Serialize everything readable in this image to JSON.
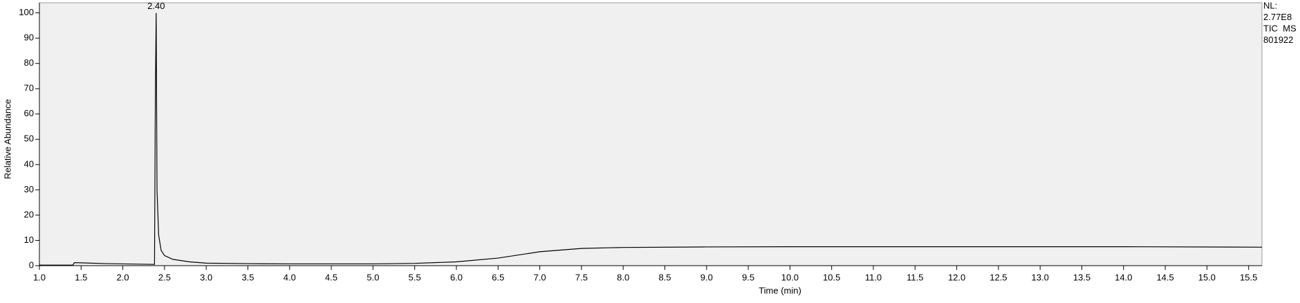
{
  "chart_data": {
    "type": "line",
    "xlabel": "Time (min)",
    "ylabel": "Relative Abundance",
    "x": [
      1.0,
      1.4,
      1.42,
      1.8,
      2.38,
      2.39,
      2.4,
      2.41,
      2.43,
      2.46,
      2.5,
      2.6,
      2.8,
      3.0,
      3.5,
      4.0,
      5.0,
      5.5,
      6.0,
      6.5,
      7.0,
      7.5,
      8.0,
      9.0,
      10.0,
      12.0,
      14.0,
      15.66
    ],
    "series": [
      {
        "color": "#000000",
        "values": [
          0.2,
          0.2,
          1.2,
          0.8,
          0.5,
          65,
          100,
          30,
          12,
          6,
          4,
          2.5,
          1.5,
          1.0,
          0.8,
          0.7,
          0.7,
          0.9,
          1.5,
          3.0,
          5.5,
          6.8,
          7.2,
          7.4,
          7.5,
          7.5,
          7.5,
          7.3
        ]
      }
    ],
    "xlim": [
      1.0,
      15.66
    ],
    "ylim": [
      0,
      104
    ],
    "xticks": [
      {
        "value": 1,
        "label": "1.0"
      },
      1.5,
      {
        "value": 2,
        "label": "2.0"
      },
      2.5,
      {
        "value": 3,
        "label": "3.0"
      },
      3.5,
      {
        "value": 4,
        "label": "4.0"
      },
      4.5,
      {
        "value": 5,
        "label": "5.0"
      },
      5.5,
      {
        "value": 6,
        "label": "6.0"
      },
      6.5,
      {
        "value": 7,
        "label": "7.0"
      },
      7.5,
      {
        "value": 8,
        "label": "8.0"
      },
      8.5,
      {
        "value": 9,
        "label": "9.0"
      },
      9.5,
      {
        "value": 10,
        "label": "10.0"
      },
      10.5,
      {
        "value": 11,
        "label": "11.0"
      },
      11.5,
      {
        "value": 12,
        "label": "12.0"
      },
      12.5,
      {
        "value": 13,
        "label": "13.0"
      },
      13.5,
      {
        "value": 14,
        "label": "14.0"
      },
      14.5,
      {
        "value": 15,
        "label": "15.0"
      },
      15.5
    ],
    "yticks": [
      0,
      10,
      20,
      30,
      40,
      50,
      60,
      70,
      80,
      90,
      100
    ],
    "annotations": [
      {
        "label": "2.40",
        "x": 2.4,
        "y": 100
      }
    ],
    "side_text": [
      "NL:",
      "2.77E8",
      "TIC  MS",
      "801922"
    ]
  }
}
